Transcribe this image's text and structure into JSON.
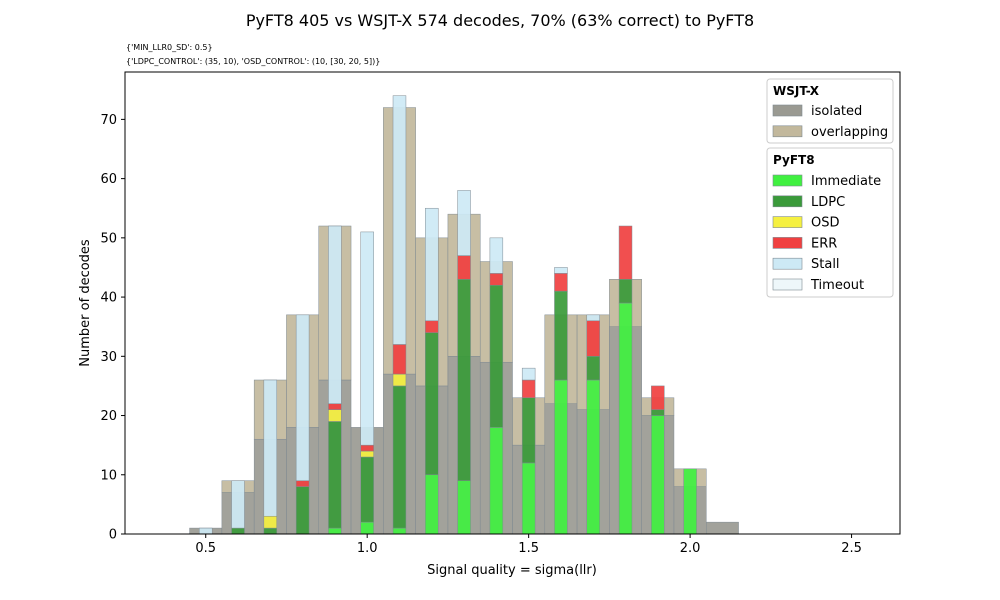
{
  "chart_data": {
    "type": "bar",
    "title": "PyFT8 405 vs WSJT-X 574 decodes, 70% (63% correct) to PyFT8",
    "params_line1": "{'MIN_LLR0_SD': 0.5}",
    "params_line2": "{'LDPC_CONTROL': (35, 10), 'OSD_CONTROL': (10, [30, 20, 5])}",
    "xlabel": "Signal quality = sigma(llr)",
    "ylabel": "Number of decodes",
    "xlim": [
      0.25,
      2.65
    ],
    "ylim": [
      0,
      78
    ],
    "xticks": [
      "0.5",
      "1.0",
      "1.5",
      "2.0",
      "2.5"
    ],
    "yticks": [
      "0",
      "10",
      "20",
      "30",
      "40",
      "50",
      "60",
      "70"
    ],
    "bins": [
      0.5,
      0.6,
      0.7,
      0.8,
      0.9,
      1.0,
      1.1,
      1.2,
      1.3,
      1.4,
      1.5,
      1.6,
      1.7,
      1.8,
      1.9,
      2.0,
      2.1
    ],
    "wsjtx": {
      "legend_title": "WSJT-X",
      "series": [
        {
          "name": "isolated",
          "color": "#9a9a92",
          "values": [
            1,
            7,
            16,
            18,
            26,
            18,
            27,
            25,
            30,
            29,
            15,
            22,
            21,
            35,
            20,
            8,
            2
          ]
        },
        {
          "name": "overlapping",
          "color": "#c2b89c",
          "values": [
            0,
            2,
            10,
            19,
            26,
            0,
            45,
            25,
            24,
            17,
            8,
            15,
            16,
            8,
            3,
            3,
            0
          ]
        }
      ]
    },
    "pyft8": {
      "legend_title": "PyFT8",
      "series": [
        {
          "name": "Immediate",
          "color": "#40f040",
          "values": [
            0,
            0,
            0,
            0,
            1,
            2,
            1,
            10,
            9,
            18,
            12,
            26,
            26,
            39,
            20,
            11,
            0
          ]
        },
        {
          "name": "LDPC",
          "color": "#3a9a3a",
          "values": [
            0,
            1,
            1,
            8,
            18,
            11,
            24,
            24,
            34,
            24,
            11,
            15,
            4,
            4,
            1,
            0,
            0
          ]
        },
        {
          "name": "OSD",
          "color": "#f5f040",
          "values": [
            0,
            0,
            2,
            0,
            2,
            1,
            2,
            0,
            0,
            0,
            0,
            0,
            0,
            0,
            0,
            0,
            0
          ]
        },
        {
          "name": "ERR",
          "color": "#f04040",
          "values": [
            0,
            0,
            0,
            1,
            1,
            1,
            5,
            2,
            4,
            2,
            3,
            3,
            6,
            9,
            4,
            0,
            0
          ]
        },
        {
          "name": "Stall",
          "color": "#cde9f5",
          "values": [
            1,
            8,
            23,
            28,
            30,
            36,
            42,
            19,
            11,
            6,
            2,
            1,
            1,
            0,
            0,
            0,
            0
          ]
        },
        {
          "name": "Timeout",
          "color": "#eef7fa",
          "values": [
            0,
            0,
            0,
            0,
            0,
            0,
            0,
            0,
            0,
            0,
            0,
            0,
            0,
            0,
            0,
            0,
            0
          ]
        }
      ]
    }
  }
}
